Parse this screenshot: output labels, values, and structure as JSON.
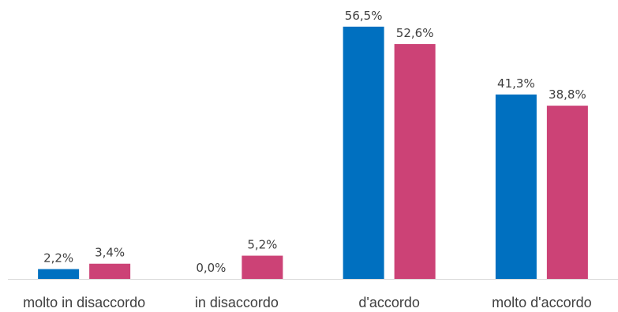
{
  "chart_data": {
    "type": "bar",
    "categories": [
      "molto in disaccordo",
      "in disaccordo",
      "d'accordo",
      "molto d'accordo"
    ],
    "series": [
      {
        "values": [
          2.2,
          0.0,
          56.5,
          41.3
        ],
        "labels": [
          "2,2%",
          "0,0%",
          "56,5%",
          "41,3%"
        ],
        "color": "#0070C0"
      },
      {
        "values": [
          3.4,
          5.2,
          52.6,
          38.8
        ],
        "labels": [
          "3,4%",
          "5,2%",
          "52,6%",
          "38,8%"
        ],
        "color": "#CC4276"
      }
    ],
    "title": "",
    "xlabel": "",
    "ylabel": "",
    "ylim": [
      0,
      60
    ],
    "grid": false,
    "legend": "none",
    "axis_color": "#d9d9d9"
  }
}
